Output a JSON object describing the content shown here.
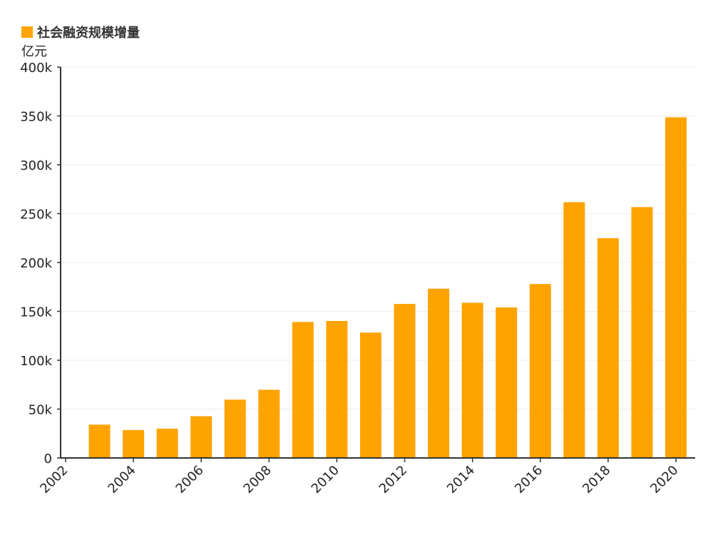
{
  "chart_data": {
    "type": "bar",
    "legend": "社会融资规模增量",
    "ylabel": "亿元",
    "xlim": [
      2002,
      2020
    ],
    "ylim": [
      0,
      400000
    ],
    "yticks": [
      0,
      50000,
      100000,
      150000,
      200000,
      250000,
      300000,
      350000,
      400000
    ],
    "ytick_labels": [
      "0",
      "50k",
      "100k",
      "150k",
      "200k",
      "250k",
      "300k",
      "350k",
      "400k"
    ],
    "xticks": [
      2002,
      2004,
      2006,
      2008,
      2010,
      2012,
      2014,
      2016,
      2018,
      2020
    ],
    "xtick_labels": [
      "2002",
      "2004",
      "2006",
      "2008",
      "2010",
      "2012",
      "2014",
      "2016",
      "2018",
      "2020"
    ],
    "categories": [
      2003,
      2004,
      2005,
      2006,
      2007,
      2008,
      2009,
      2010,
      2011,
      2012,
      2013,
      2014,
      2015,
      2016,
      2017,
      2018,
      2019,
      2020
    ],
    "values": [
      34100,
      28600,
      30000,
      42700,
      59700,
      69800,
      139100,
      140200,
      128300,
      157600,
      173200,
      158800,
      154100,
      178000,
      261700,
      224900,
      256700,
      348600
    ],
    "bar_color": "#ffa300",
    "grid": true,
    "legend_position": "top-left"
  }
}
